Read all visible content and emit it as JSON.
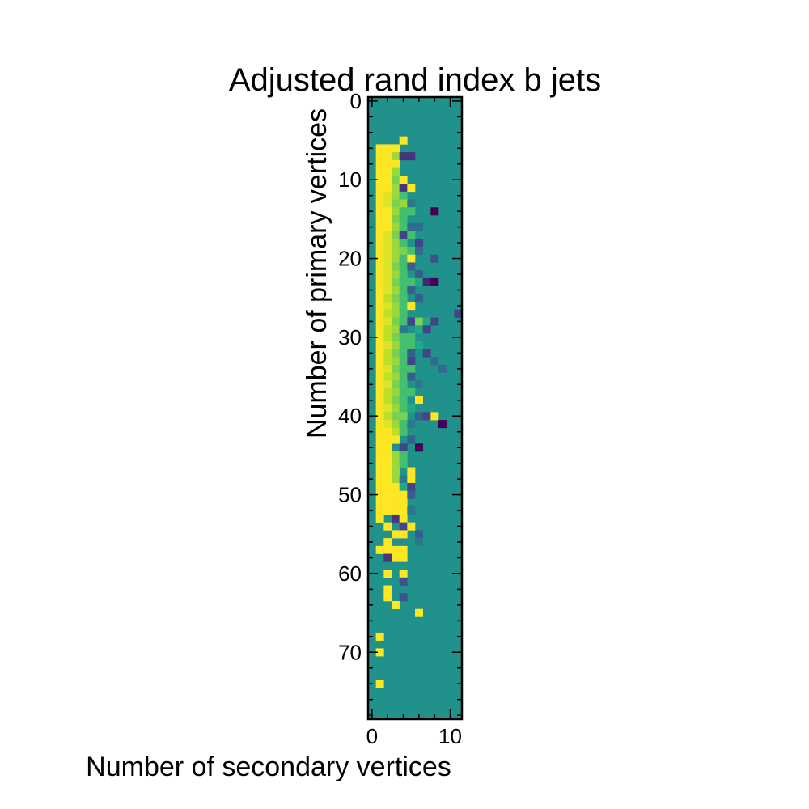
{
  "chart_data": {
    "type": "heatmap",
    "title": "Adjusted rand index b jets",
    "xlabel": "Number of secondary vertices",
    "ylabel": "Number of primary vertices",
    "x_ticks": [
      "0",
      "10"
    ],
    "y_ticks": [
      "0",
      "10",
      "20",
      "30",
      "40",
      "50",
      "60",
      "70"
    ],
    "xlim": [
      -0.5,
      11.5
    ],
    "ylim": [
      78.5,
      -0.5
    ],
    "y_axis_inverted": true,
    "grid": false,
    "colormap": "viridis",
    "background_value": 0.5,
    "color_range": [
      0,
      1
    ],
    "cells": [
      [
        5,
        4,
        1.0
      ],
      [
        6,
        1,
        1.0
      ],
      [
        6,
        2,
        1.0
      ],
      [
        6,
        3,
        1.0
      ],
      [
        7,
        1,
        1.0
      ],
      [
        7,
        2,
        1.0
      ],
      [
        7,
        3,
        0.85
      ],
      [
        7,
        4,
        0.15
      ],
      [
        7,
        5,
        0.15
      ],
      [
        8,
        1,
        1.0
      ],
      [
        8,
        2,
        1.0
      ],
      [
        8,
        3,
        1.0
      ],
      [
        9,
        1,
        1.0
      ],
      [
        9,
        2,
        1.0
      ],
      [
        9,
        3,
        0.85
      ],
      [
        10,
        1,
        1.0
      ],
      [
        10,
        2,
        1.0
      ],
      [
        10,
        3,
        0.8
      ],
      [
        10,
        4,
        1.0
      ],
      [
        11,
        1,
        1.0
      ],
      [
        11,
        2,
        1.0
      ],
      [
        11,
        3,
        0.85
      ],
      [
        11,
        4,
        0.15
      ],
      [
        11,
        5,
        1.0
      ],
      [
        12,
        1,
        1.0
      ],
      [
        12,
        2,
        0.95
      ],
      [
        12,
        3,
        0.85
      ],
      [
        12,
        4,
        0.7
      ],
      [
        13,
        1,
        1.0
      ],
      [
        13,
        2,
        0.95
      ],
      [
        13,
        3,
        0.8
      ],
      [
        13,
        4,
        0.85
      ],
      [
        13,
        5,
        0.4
      ],
      [
        14,
        1,
        1.0
      ],
      [
        14,
        2,
        1.0
      ],
      [
        14,
        3,
        0.85
      ],
      [
        14,
        4,
        0.7
      ],
      [
        14,
        5,
        0.7
      ],
      [
        14,
        8,
        0.0
      ],
      [
        15,
        1,
        1.0
      ],
      [
        15,
        2,
        1.0
      ],
      [
        15,
        3,
        0.8
      ],
      [
        15,
        4,
        0.7
      ],
      [
        16,
        1,
        1.0
      ],
      [
        16,
        2,
        1.0
      ],
      [
        16,
        3,
        0.85
      ],
      [
        16,
        4,
        0.7
      ],
      [
        16,
        5,
        0.35
      ],
      [
        16,
        6,
        0.35
      ],
      [
        17,
        1,
        1.0
      ],
      [
        17,
        2,
        0.95
      ],
      [
        17,
        3,
        0.8
      ],
      [
        17,
        4,
        0.2
      ],
      [
        17,
        5,
        0.7
      ],
      [
        18,
        1,
        1.0
      ],
      [
        18,
        2,
        0.95
      ],
      [
        18,
        3,
        0.85
      ],
      [
        18,
        4,
        0.7
      ],
      [
        18,
        6,
        0.2
      ],
      [
        19,
        1,
        1.0
      ],
      [
        19,
        2,
        0.95
      ],
      [
        19,
        3,
        0.85
      ],
      [
        19,
        4,
        0.8
      ],
      [
        19,
        5,
        0.7
      ],
      [
        19,
        6,
        0.35
      ],
      [
        20,
        1,
        1.0
      ],
      [
        20,
        2,
        0.95
      ],
      [
        20,
        3,
        0.85
      ],
      [
        20,
        4,
        0.7
      ],
      [
        20,
        5,
        1.0
      ],
      [
        20,
        8,
        0.25
      ],
      [
        21,
        1,
        1.0
      ],
      [
        21,
        2,
        0.95
      ],
      [
        21,
        3,
        0.8
      ],
      [
        21,
        4,
        0.7
      ],
      [
        21,
        5,
        0.3
      ],
      [
        22,
        1,
        1.0
      ],
      [
        22,
        2,
        0.95
      ],
      [
        22,
        3,
        0.85
      ],
      [
        22,
        4,
        0.7
      ],
      [
        22,
        6,
        0.3
      ],
      [
        23,
        1,
        1.0
      ],
      [
        23,
        2,
        0.95
      ],
      [
        23,
        3,
        0.8
      ],
      [
        23,
        4,
        0.7
      ],
      [
        23,
        5,
        0.7
      ],
      [
        23,
        6,
        0.6
      ],
      [
        23,
        7,
        0.1
      ],
      [
        23,
        8,
        0.0
      ],
      [
        24,
        1,
        1.0
      ],
      [
        24,
        2,
        0.95
      ],
      [
        24,
        3,
        0.85
      ],
      [
        24,
        4,
        0.7
      ],
      [
        24,
        5,
        0.3
      ],
      [
        25,
        1,
        1.0
      ],
      [
        25,
        2,
        0.9
      ],
      [
        25,
        3,
        0.8
      ],
      [
        25,
        4,
        0.7
      ],
      [
        25,
        6,
        0.3
      ],
      [
        26,
        1,
        1.0
      ],
      [
        26,
        2,
        0.95
      ],
      [
        26,
        3,
        0.85
      ],
      [
        26,
        4,
        0.7
      ],
      [
        26,
        5,
        1.0
      ],
      [
        27,
        1,
        1.0
      ],
      [
        27,
        2,
        0.9
      ],
      [
        27,
        3,
        0.85
      ],
      [
        27,
        4,
        0.7
      ],
      [
        27,
        11,
        0.2
      ],
      [
        28,
        1,
        1.0
      ],
      [
        28,
        2,
        0.95
      ],
      [
        28,
        3,
        0.8
      ],
      [
        28,
        4,
        0.7
      ],
      [
        28,
        5,
        0.2
      ],
      [
        28,
        6,
        0.8
      ],
      [
        28,
        7,
        0.6
      ],
      [
        28,
        8,
        0.2
      ],
      [
        29,
        1,
        1.0
      ],
      [
        29,
        2,
        0.9
      ],
      [
        29,
        3,
        0.85
      ],
      [
        29,
        4,
        0.4
      ],
      [
        29,
        6,
        0.6
      ],
      [
        29,
        7,
        0.2
      ],
      [
        30,
        1,
        1.0
      ],
      [
        30,
        2,
        0.9
      ],
      [
        30,
        3,
        0.8
      ],
      [
        30,
        4,
        0.7
      ],
      [
        30,
        5,
        0.7
      ],
      [
        31,
        1,
        1.0
      ],
      [
        31,
        2,
        0.95
      ],
      [
        31,
        3,
        0.85
      ],
      [
        31,
        4,
        0.7
      ],
      [
        31,
        5,
        0.7
      ],
      [
        31,
        6,
        0.6
      ],
      [
        32,
        1,
        1.0
      ],
      [
        32,
        2,
        0.9
      ],
      [
        32,
        3,
        0.8
      ],
      [
        32,
        4,
        0.7
      ],
      [
        32,
        5,
        0.3
      ],
      [
        32,
        7,
        0.2
      ],
      [
        33,
        1,
        1.0
      ],
      [
        33,
        2,
        0.9
      ],
      [
        33,
        3,
        0.85
      ],
      [
        33,
        4,
        0.7
      ],
      [
        33,
        5,
        0.2
      ],
      [
        33,
        8,
        0.35
      ],
      [
        34,
        1,
        1.0
      ],
      [
        34,
        2,
        0.95
      ],
      [
        34,
        3,
        0.8
      ],
      [
        34,
        4,
        0.7
      ],
      [
        34,
        5,
        0.7
      ],
      [
        34,
        9,
        0.35
      ],
      [
        35,
        1,
        1.0
      ],
      [
        35,
        2,
        0.9
      ],
      [
        35,
        3,
        0.85
      ],
      [
        35,
        4,
        0.7
      ],
      [
        35,
        5,
        0.3
      ],
      [
        36,
        1,
        1.0
      ],
      [
        36,
        2,
        0.95
      ],
      [
        36,
        3,
        0.8
      ],
      [
        36,
        4,
        0.7
      ],
      [
        36,
        6,
        0.4
      ],
      [
        37,
        1,
        1.0
      ],
      [
        37,
        2,
        0.9
      ],
      [
        37,
        3,
        0.85
      ],
      [
        37,
        4,
        0.7
      ],
      [
        37,
        5,
        0.7
      ],
      [
        38,
        1,
        1.0
      ],
      [
        38,
        2,
        0.9
      ],
      [
        38,
        3,
        0.8
      ],
      [
        38,
        4,
        0.7
      ],
      [
        38,
        6,
        1.0
      ],
      [
        39,
        1,
        1.0
      ],
      [
        39,
        2,
        0.95
      ],
      [
        39,
        3,
        0.85
      ],
      [
        39,
        4,
        0.7
      ],
      [
        39,
        5,
        0.6
      ],
      [
        40,
        1,
        1.0
      ],
      [
        40,
        2,
        0.9
      ],
      [
        40,
        3,
        0.8
      ],
      [
        40,
        4,
        0.8
      ],
      [
        40,
        6,
        0.3
      ],
      [
        40,
        7,
        0.2
      ],
      [
        40,
        8,
        1.0
      ],
      [
        41,
        1,
        1.0
      ],
      [
        41,
        2,
        0.95
      ],
      [
        41,
        3,
        0.85
      ],
      [
        41,
        4,
        0.7
      ],
      [
        41,
        5,
        0.4
      ],
      [
        41,
        9,
        0.0
      ],
      [
        42,
        1,
        1.0
      ],
      [
        42,
        2,
        1.0
      ],
      [
        42,
        3,
        0.9
      ],
      [
        42,
        4,
        0.7
      ],
      [
        43,
        1,
        1.0
      ],
      [
        43,
        2,
        1.0
      ],
      [
        43,
        3,
        1.0
      ],
      [
        43,
        5,
        0.3
      ],
      [
        44,
        1,
        1.0
      ],
      [
        44,
        2,
        1.0
      ],
      [
        44,
        4,
        0.2
      ],
      [
        44,
        6,
        0.0
      ],
      [
        45,
        1,
        1.0
      ],
      [
        45,
        2,
        1.0
      ],
      [
        45,
        3,
        0.85
      ],
      [
        45,
        4,
        0.7
      ],
      [
        46,
        1,
        1.0
      ],
      [
        46,
        2,
        1.0
      ],
      [
        46,
        3,
        0.85
      ],
      [
        46,
        4,
        0.7
      ],
      [
        47,
        1,
        1.0
      ],
      [
        47,
        2,
        1.0
      ],
      [
        47,
        3,
        0.85
      ],
      [
        47,
        5,
        1.0
      ],
      [
        48,
        1,
        1.0
      ],
      [
        48,
        2,
        1.0
      ],
      [
        48,
        3,
        0.85
      ],
      [
        48,
        4,
        0.4
      ],
      [
        48,
        5,
        1.0
      ],
      [
        49,
        1,
        1.0
      ],
      [
        49,
        2,
        1.0
      ],
      [
        49,
        3,
        1.0
      ],
      [
        49,
        4,
        0.6
      ],
      [
        49,
        5,
        0.2
      ],
      [
        50,
        1,
        1.0
      ],
      [
        50,
        2,
        1.0
      ],
      [
        50,
        3,
        1.0
      ],
      [
        50,
        4,
        1.0
      ],
      [
        50,
        5,
        0.3
      ],
      [
        51,
        1,
        1.0
      ],
      [
        51,
        2,
        1.0
      ],
      [
        51,
        3,
        1.0
      ],
      [
        51,
        4,
        1.0
      ],
      [
        52,
        1,
        1.0
      ],
      [
        52,
        2,
        1.0
      ],
      [
        52,
        3,
        1.0
      ],
      [
        52,
        4,
        1.0
      ],
      [
        52,
        5,
        0.4
      ],
      [
        53,
        1,
        1.0
      ],
      [
        53,
        3,
        0.15
      ],
      [
        53,
        4,
        1.0
      ],
      [
        54,
        2,
        1.0
      ],
      [
        54,
        4,
        0.2
      ],
      [
        54,
        5,
        1.0
      ],
      [
        55,
        3,
        1.0
      ],
      [
        55,
        4,
        1.0
      ],
      [
        55,
        6,
        0.3
      ],
      [
        56,
        2,
        1.0
      ],
      [
        56,
        6,
        0.4
      ],
      [
        57,
        1,
        1.0
      ],
      [
        57,
        2,
        1.0
      ],
      [
        57,
        3,
        1.0
      ],
      [
        57,
        4,
        1.0
      ],
      [
        58,
        2,
        0.15
      ],
      [
        58,
        3,
        1.0
      ],
      [
        58,
        4,
        1.0
      ],
      [
        60,
        2,
        1.0
      ],
      [
        60,
        4,
        1.0
      ],
      [
        61,
        4,
        0.25
      ],
      [
        62,
        2,
        1.0
      ],
      [
        63,
        2,
        1.0
      ],
      [
        63,
        4,
        0.25
      ],
      [
        64,
        3,
        1.0
      ],
      [
        65,
        6,
        1.0
      ],
      [
        68,
        1,
        1.0
      ],
      [
        70,
        1,
        1.0
      ],
      [
        74,
        1,
        1.0
      ]
    ]
  }
}
